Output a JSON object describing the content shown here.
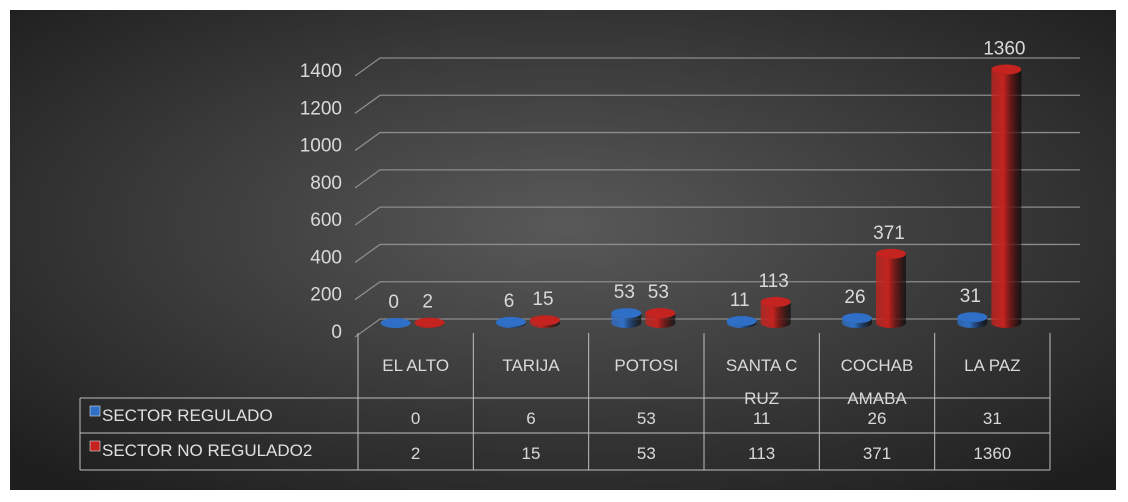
{
  "chart_data": {
    "type": "bar",
    "categories": [
      "EL ALTO",
      "TARIJA",
      "POTOSI",
      "SANTA CRUZ",
      "COCHABAMABA",
      "LA PAZ"
    ],
    "series": [
      {
        "name": "SECTOR REGULADO",
        "color": "#2f6fc7",
        "values": [
          0,
          6,
          53,
          11,
          26,
          31
        ]
      },
      {
        "name": "SECTOR NO REGULADO2",
        "color": "#c4231f",
        "values": [
          2,
          15,
          53,
          113,
          371,
          1360
        ]
      }
    ],
    "ylim": [
      0,
      1400
    ],
    "yticks": [
      0,
      200,
      400,
      600,
      800,
      1000,
      1200,
      1400
    ],
    "grid": true,
    "data_table": true
  }
}
